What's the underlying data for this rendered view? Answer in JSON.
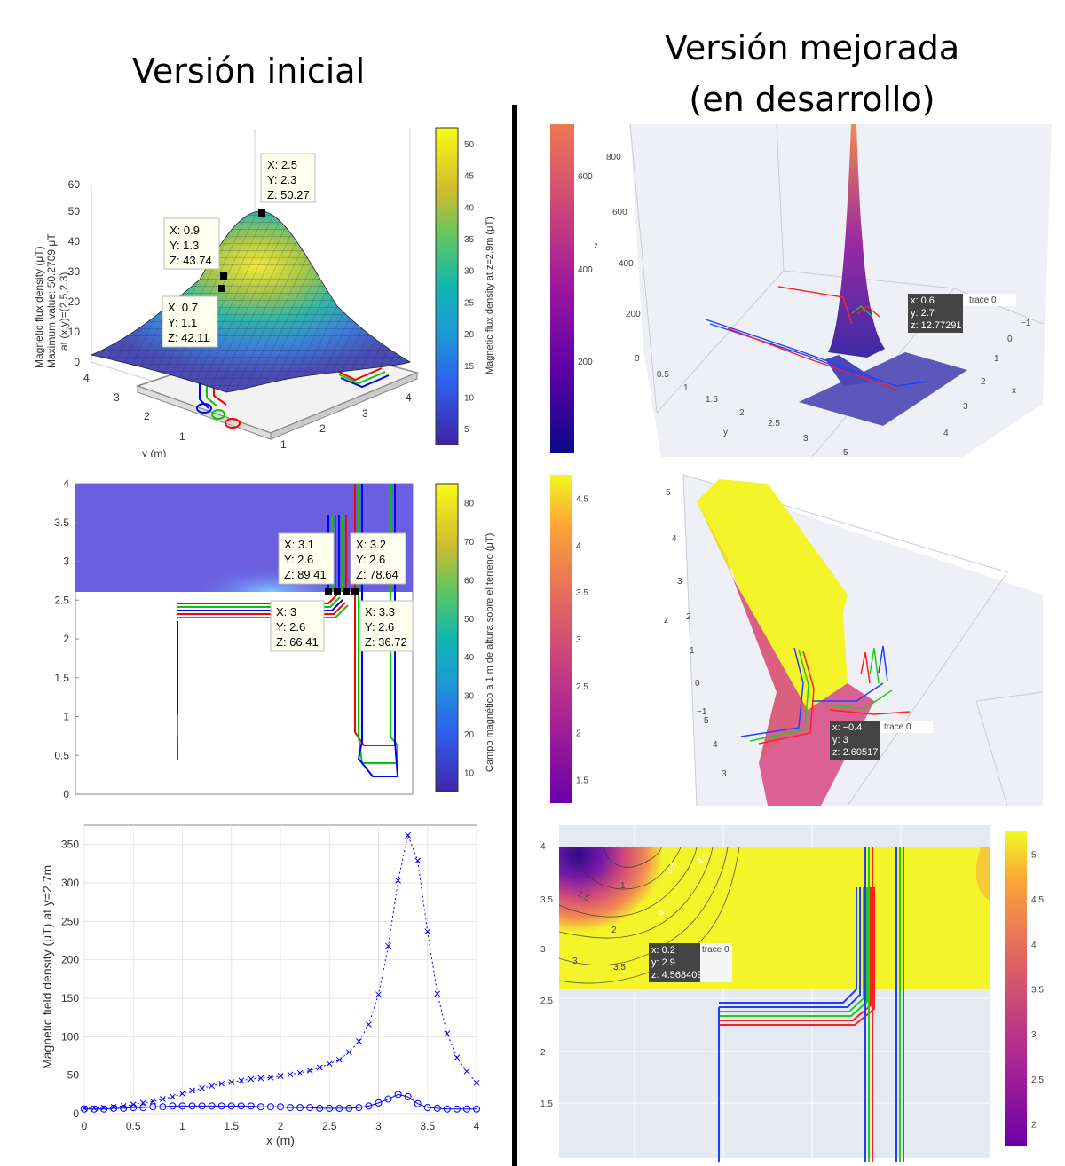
{
  "titles": {
    "left": "Versión inicial",
    "right_line1": "Versión mejorada",
    "right_line2": "(en desarrollo)"
  },
  "chart_data": [
    {
      "type": "surface",
      "panel": "initial-3d-surface",
      "zlabel_line1": "Magnetic flux density (μT)",
      "zlabel_line2": "Maximum value: 50.2709 μT",
      "zlabel_line3": "at (x,y)=(2.5,2.3)",
      "ylabel": "y (m)",
      "zticks": [
        "0",
        "10",
        "20",
        "30",
        "40",
        "50",
        "60"
      ],
      "xticks": [
        "1",
        "2",
        "3",
        "4"
      ],
      "yticks": [
        "1",
        "2",
        "3",
        "4"
      ],
      "colorbar_label": "Magnetic flux density at z=2.9m (μT)",
      "colorbar_ticks": [
        "5",
        "10",
        "15",
        "20",
        "25",
        "30",
        "35",
        "40",
        "45",
        "50"
      ],
      "datatips": [
        {
          "x": "X: 2.5",
          "y": "Y: 2.3",
          "z": "Z: 50.27"
        },
        {
          "x": "X: 0.9",
          "y": "Y: 1.3",
          "z": "Z: 43.74"
        },
        {
          "x": "X: 0.7",
          "y": "Y: 1.1",
          "z": "Z: 42.11"
        }
      ]
    },
    {
      "type": "heatmap",
      "panel": "initial-top-view",
      "yticks": [
        "0",
        "0.5",
        "1",
        "1.5",
        "2",
        "2.5",
        "3",
        "3.5",
        "4"
      ],
      "colorbar_label": "Campo magnético a 1 m de altura sobre el terreno (μT)",
      "colorbar_ticks": [
        "10",
        "20",
        "30",
        "40",
        "50",
        "60",
        "70",
        "80"
      ],
      "datatips": [
        {
          "x": "X: 3.1",
          "y": "Y: 2.6",
          "z": "Z: 89.41"
        },
        {
          "x": "X: 3.2",
          "y": "Y: 2.6",
          "z": "Z: 78.64"
        },
        {
          "x": "X: 3",
          "y": "Y: 2.6",
          "z": "Z: 66.41"
        },
        {
          "x": "X: 3.3",
          "y": "Y: 2.6",
          "z": "Z: 36.72"
        }
      ]
    },
    {
      "type": "line",
      "panel": "initial-profile",
      "xlabel": "x (m)",
      "ylabel": "Magnetic field density (μT) at y=2.7m",
      "xlim": [
        0,
        4
      ],
      "ylim": [
        0,
        375
      ],
      "xticks": [
        "0",
        "0.5",
        "1",
        "1.5",
        "2",
        "2.5",
        "3",
        "3.5",
        "4"
      ],
      "yticks": [
        "0",
        "50",
        "100",
        "150",
        "200",
        "250",
        "300",
        "350"
      ],
      "x": [
        0,
        0.1,
        0.2,
        0.3,
        0.4,
        0.5,
        0.6,
        0.7,
        0.8,
        0.9,
        1.0,
        1.1,
        1.2,
        1.3,
        1.4,
        1.5,
        1.6,
        1.7,
        1.8,
        1.9,
        2.0,
        2.1,
        2.2,
        2.3,
        2.4,
        2.5,
        2.6,
        2.7,
        2.8,
        2.9,
        3.0,
        3.1,
        3.2,
        3.3,
        3.4,
        3.5,
        3.6,
        3.7,
        3.8,
        3.9,
        4.0
      ],
      "series": [
        {
          "marker": "x",
          "values": [
            7,
            7,
            8,
            9,
            10,
            12,
            14,
            16,
            19,
            22,
            26,
            30,
            33,
            36,
            39,
            41,
            43,
            45,
            46,
            47,
            49,
            51,
            53,
            56,
            60,
            65,
            70,
            80,
            94,
            116,
            155,
            218,
            303,
            362,
            329,
            237,
            156,
            104,
            73,
            55,
            40
          ]
        },
        {
          "marker": "o",
          "values": [
            6,
            6,
            6,
            7,
            7,
            8,
            8,
            9,
            9,
            10,
            10,
            10,
            10,
            10,
            10,
            10,
            10,
            10,
            9,
            9,
            9,
            8,
            8,
            8,
            7,
            7,
            7,
            7,
            8,
            10,
            14,
            19,
            25,
            22,
            13,
            8,
            7,
            6,
            6,
            6,
            6
          ]
        }
      ]
    },
    {
      "type": "surface",
      "panel": "improved-3d-surface",
      "axis_x": "x",
      "axis_y": "y",
      "axis_z": "z",
      "zticks": [
        "0",
        "200",
        "400",
        "600",
        "800"
      ],
      "xticks": [
        "−1",
        "0",
        "1",
        "2",
        "3",
        "4"
      ],
      "yticks": [
        "0.5",
        "1",
        "1.5",
        "2",
        "2.5",
        "3",
        "5"
      ],
      "colorbar_ticks": [
        "200",
        "400",
        "600"
      ],
      "hover": {
        "x": "x: 0.6",
        "y": "y: 2.7",
        "z": "z: 12.77291",
        "trace": "trace 0"
      }
    },
    {
      "type": "surface",
      "panel": "improved-3d-view",
      "axis_z": "z",
      "zticks": [
        "−1",
        "0",
        "1",
        "2",
        "3",
        "4",
        "5"
      ],
      "yticks": [
        "5",
        "4",
        "3"
      ],
      "colorbar_ticks": [
        "1.5",
        "2",
        "2.5",
        "3",
        "3.5",
        "4",
        "4.5"
      ],
      "hover": {
        "x": "x: −0.4",
        "y": "y: 3",
        "z": "z: 2.60517",
        "trace": "trace 0"
      }
    },
    {
      "type": "heatmap",
      "panel": "improved-contour",
      "yticks": [
        "1.5",
        "2",
        "2.5",
        "3",
        "3.5",
        "4"
      ],
      "colorbar_ticks": [
        "2",
        "2.5",
        "3",
        "3.5",
        "4",
        "4.5",
        "5"
      ],
      "contour_labels": [
        "1",
        "1.5",
        "2",
        "2.5",
        "3",
        "3.5",
        "4",
        "4.5"
      ],
      "hover": {
        "x": "x: 0.2",
        "y": "y: 2.9",
        "z": "z: 4.568409",
        "trace": "trace 0"
      }
    }
  ]
}
